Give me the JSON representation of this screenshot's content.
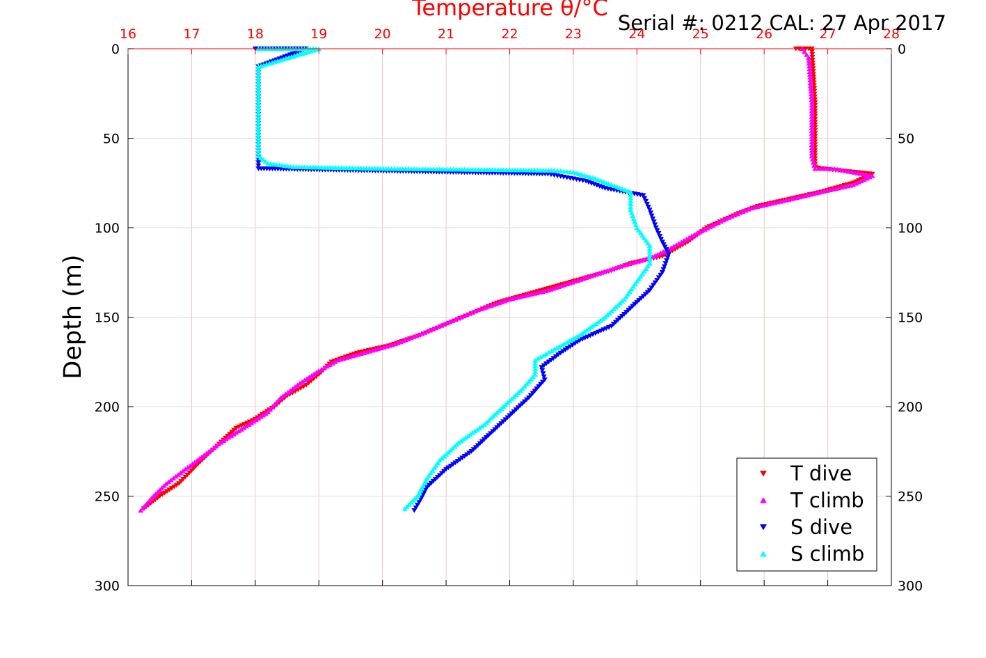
{
  "chart_data": {
    "type": "scatter",
    "title": "Temperature θ/°C",
    "annotation": "Serial #: 0212  CAL: 27 Apr 2017",
    "xlabel": "Temperature θ/°C",
    "ylabel": "Depth (m)",
    "xlim": [
      16,
      28
    ],
    "ylim": [
      0,
      300
    ],
    "y_reversed": true,
    "x_ticks": [
      "16",
      "17",
      "18",
      "19",
      "20",
      "21",
      "22",
      "23",
      "24",
      "25",
      "26",
      "27",
      "28"
    ],
    "y_ticks": [
      "0",
      "50",
      "100",
      "150",
      "200",
      "250",
      "300"
    ],
    "grid": true,
    "legend_position": "bottom-right",
    "colors": {
      "x_axis": "#ff0000",
      "grid_x": "#f4c2c2",
      "grid_y": "#dddddd",
      "T dive": "#ff0000",
      "T climb": "#ff00ff",
      "S dive": "#0000ff",
      "S climb": "#00ffff"
    },
    "series": [
      {
        "name": "T dive",
        "marker": "triangle-down",
        "points": [
          [
            26.5,
            0
          ],
          [
            26.75,
            0
          ],
          [
            26.8,
            30
          ],
          [
            26.8,
            66
          ],
          [
            26.9,
            67
          ],
          [
            27.7,
            70
          ],
          [
            27.4,
            75
          ],
          [
            26.9,
            80
          ],
          [
            26.4,
            84
          ],
          [
            25.9,
            88
          ],
          [
            25.6,
            92
          ],
          [
            25.1,
            100
          ],
          [
            24.8,
            108
          ],
          [
            24.4,
            116
          ],
          [
            23.9,
            120
          ],
          [
            23.6,
            124
          ],
          [
            23.0,
            130
          ],
          [
            22.4,
            136
          ],
          [
            21.8,
            142
          ],
          [
            21.4,
            148
          ],
          [
            21.0,
            154
          ],
          [
            20.6,
            160
          ],
          [
            20.1,
            166
          ],
          [
            19.6,
            170
          ],
          [
            19.2,
            175
          ],
          [
            19.0,
            182
          ],
          [
            18.8,
            188
          ],
          [
            18.5,
            194
          ],
          [
            18.3,
            200
          ],
          [
            18.0,
            207
          ],
          [
            17.7,
            212
          ],
          [
            17.4,
            222
          ],
          [
            17.1,
            232
          ],
          [
            16.8,
            243
          ],
          [
            16.5,
            250
          ],
          [
            16.25,
            257
          ]
        ]
      },
      {
        "name": "T climb",
        "marker": "triangle-up",
        "points": [
          [
            26.6,
            0
          ],
          [
            26.7,
            5
          ],
          [
            26.75,
            30
          ],
          [
            26.75,
            60
          ],
          [
            26.8,
            67
          ],
          [
            27.1,
            67
          ],
          [
            27.7,
            71
          ],
          [
            27.4,
            76
          ],
          [
            26.9,
            80
          ],
          [
            26.3,
            85
          ],
          [
            25.8,
            89
          ],
          [
            25.4,
            95
          ],
          [
            24.9,
            104
          ],
          [
            24.5,
            112
          ],
          [
            24.2,
            117
          ],
          [
            23.7,
            122
          ],
          [
            23.2,
            128
          ],
          [
            22.6,
            135
          ],
          [
            22.0,
            140
          ],
          [
            21.5,
            146
          ],
          [
            21.1,
            152
          ],
          [
            20.7,
            158
          ],
          [
            20.2,
            165
          ],
          [
            19.8,
            169
          ],
          [
            19.3,
            174
          ],
          [
            19.0,
            180
          ],
          [
            18.7,
            187
          ],
          [
            18.4,
            195
          ],
          [
            18.2,
            203
          ],
          [
            17.9,
            210
          ],
          [
            17.5,
            219
          ],
          [
            17.2,
            227
          ],
          [
            16.9,
            235
          ],
          [
            16.6,
            243
          ],
          [
            16.4,
            250
          ],
          [
            16.2,
            258
          ]
        ]
      },
      {
        "name": "S dive",
        "marker": "triangle-down",
        "points": [
          [
            18.0,
            0
          ],
          [
            18.3,
            0
          ],
          [
            18.4,
            0
          ],
          [
            18.8,
            0
          ],
          [
            18.05,
            10
          ],
          [
            18.05,
            30
          ],
          [
            18.05,
            50
          ],
          [
            18.05,
            62
          ],
          [
            18.05,
            67
          ],
          [
            22.6,
            70
          ],
          [
            22.9,
            72
          ],
          [
            23.2,
            74
          ],
          [
            23.5,
            78
          ],
          [
            24.1,
            82
          ],
          [
            24.2,
            90
          ],
          [
            24.3,
            100
          ],
          [
            24.4,
            108
          ],
          [
            24.5,
            115
          ],
          [
            24.4,
            125
          ],
          [
            24.2,
            135
          ],
          [
            23.9,
            145
          ],
          [
            23.6,
            155
          ],
          [
            23.1,
            163
          ],
          [
            22.8,
            170
          ],
          [
            22.5,
            178
          ],
          [
            22.55,
            185
          ],
          [
            22.3,
            195
          ],
          [
            22.0,
            205
          ],
          [
            21.7,
            215
          ],
          [
            21.4,
            225
          ],
          [
            21.0,
            235
          ],
          [
            20.7,
            245
          ],
          [
            20.6,
            252
          ],
          [
            20.5,
            258
          ]
        ]
      },
      {
        "name": "S climb",
        "marker": "triangle-up",
        "points": [
          [
            18.05,
            0
          ],
          [
            19.0,
            0
          ],
          [
            18.05,
            10
          ],
          [
            18.05,
            30
          ],
          [
            18.05,
            50
          ],
          [
            18.05,
            60
          ],
          [
            18.2,
            64
          ],
          [
            18.6,
            66
          ],
          [
            20.1,
            67
          ],
          [
            22.7,
            68
          ],
          [
            23.0,
            69
          ],
          [
            23.3,
            72
          ],
          [
            23.6,
            76
          ],
          [
            23.9,
            80
          ],
          [
            23.9,
            90
          ],
          [
            24.0,
            100
          ],
          [
            24.2,
            110
          ],
          [
            24.2,
            120
          ],
          [
            24.0,
            130
          ],
          [
            23.8,
            140
          ],
          [
            23.5,
            150
          ],
          [
            23.1,
            160
          ],
          [
            22.7,
            168
          ],
          [
            22.4,
            174
          ],
          [
            22.4,
            182
          ],
          [
            22.2,
            190
          ],
          [
            21.9,
            200
          ],
          [
            21.6,
            210
          ],
          [
            21.2,
            220
          ],
          [
            20.9,
            230
          ],
          [
            20.7,
            240
          ],
          [
            20.55,
            250
          ],
          [
            20.35,
            257
          ]
        ]
      }
    ]
  }
}
